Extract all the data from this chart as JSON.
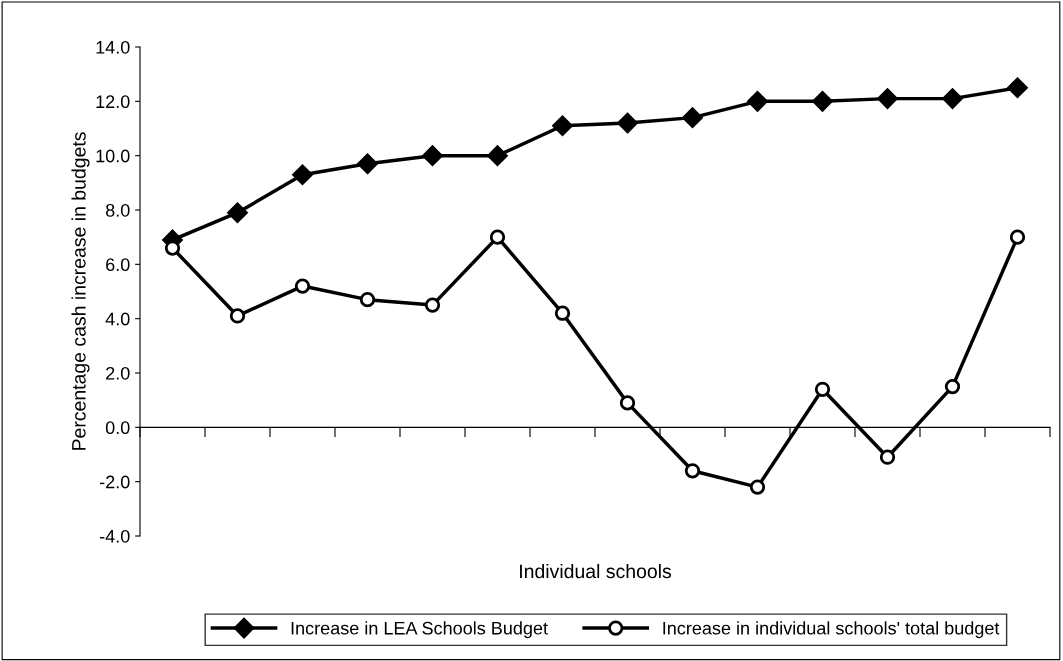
{
  "chart_data": {
    "type": "line",
    "xlabel": "Individual schools",
    "ylabel": "Percentage cash increase in budgets",
    "categories": [
      null,
      null,
      null,
      null,
      null,
      null,
      null,
      null,
      null,
      null,
      null,
      null,
      null,
      null
    ],
    "series": [
      {
        "name": "Increase in LEA Schools Budget",
        "color": "#000000",
        "marker": "diamond",
        "values": [
          6.9,
          7.9,
          9.3,
          9.7,
          10.0,
          10.0,
          11.1,
          11.2,
          11.4,
          12.0,
          12.0,
          12.1,
          12.1,
          12.5
        ]
      },
      {
        "name": "Increase in individual schools' total budget",
        "color": "#000000",
        "marker": "circle",
        "values": [
          6.6,
          4.1,
          5.2,
          4.7,
          4.5,
          7.0,
          4.2,
          0.9,
          -1.6,
          -2.2,
          1.4,
          -1.1,
          1.5,
          7.0
        ]
      }
    ],
    "ylim": [
      -4,
      14
    ],
    "yticks": [
      {
        "value": -4,
        "label": "-4.0"
      },
      {
        "value": -2,
        "label": "-2.0"
      },
      {
        "value": 0,
        "label": "0.0"
      },
      {
        "value": 2,
        "label": "2.0"
      },
      {
        "value": 4,
        "label": "4.0"
      },
      {
        "value": 6,
        "label": "6.0"
      },
      {
        "value": 8,
        "label": "8.0"
      },
      {
        "value": 10,
        "label": "10.0"
      },
      {
        "value": 12,
        "label": "12.0"
      },
      {
        "value": 14,
        "label": "14.0"
      }
    ],
    "legend": "bottom",
    "line_style": "solid"
  }
}
